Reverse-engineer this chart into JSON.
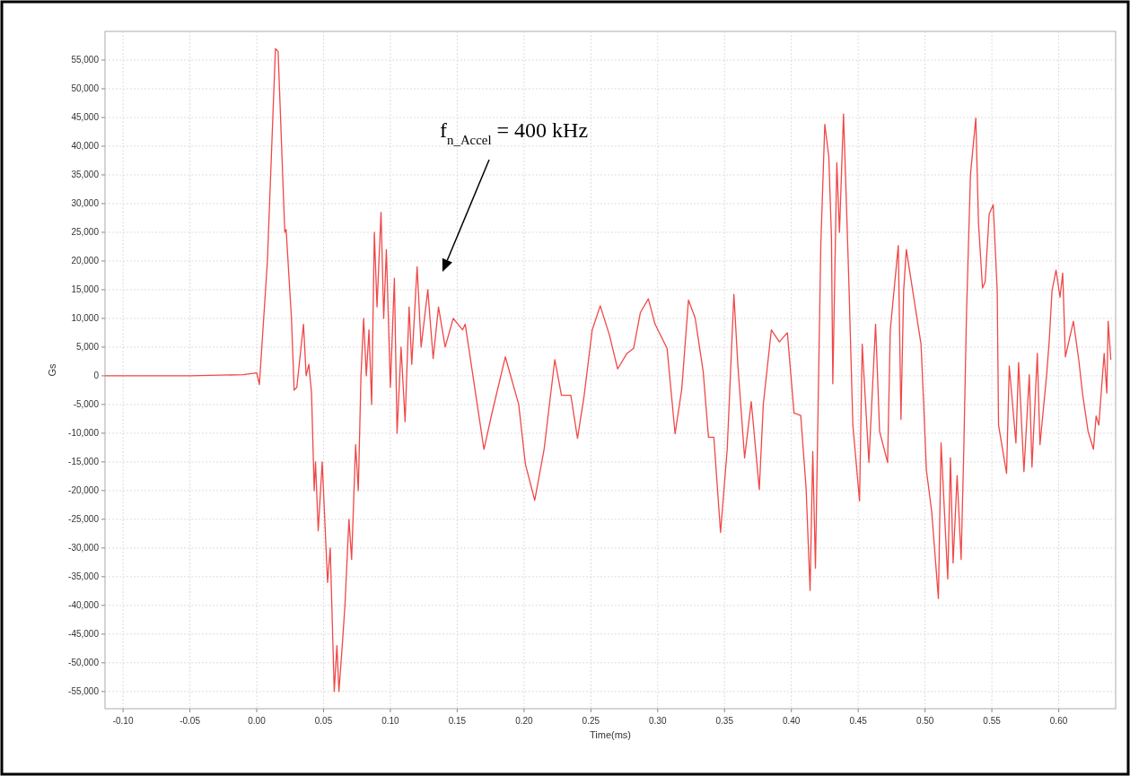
{
  "chart_data": {
    "type": "line",
    "xlabel": "Time(ms)",
    "ylabel": "Gs",
    "annotations": [
      "f$_{n_Accel}$ = 400 kHz"
    ],
    "xlim": [
      -0.1135,
      0.6426
    ],
    "ylim": [
      -58000,
      60000
    ],
    "xticks": [
      {
        "value": -0.1,
        "label": "-0.10"
      },
      {
        "value": -0.05,
        "label": "-0.05"
      },
      {
        "value": 0,
        "label": "0.00"
      },
      {
        "value": 0.05,
        "label": "0.05"
      },
      {
        "value": 0.1,
        "label": "0.10"
      },
      {
        "value": 0.15,
        "label": "0.15"
      },
      {
        "value": 0.2,
        "label": "0.20"
      },
      {
        "value": 0.25,
        "label": "0.25"
      },
      {
        "value": 0.3,
        "label": "0.30"
      },
      {
        "value": 0.35,
        "label": "0.35"
      },
      {
        "value": 0.4,
        "label": "0.40"
      },
      {
        "value": 0.45,
        "label": "0.45"
      },
      {
        "value": 0.5,
        "label": "0.50"
      },
      {
        "value": 0.55,
        "label": "0.55"
      },
      {
        "value": 0.6,
        "label": "0.60"
      }
    ],
    "yticks": [
      {
        "value": 55000,
        "label": "55,000"
      },
      {
        "value": 50000,
        "label": "50,000"
      },
      {
        "value": 45000,
        "label": "45,000"
      },
      {
        "value": 40000,
        "label": "40,000"
      },
      {
        "value": 35000,
        "label": "35,000"
      },
      {
        "value": 30000,
        "label": "30,000"
      },
      {
        "value": 25000,
        "label": "25,000"
      },
      {
        "value": 20000,
        "label": "20,000"
      },
      {
        "value": 15000,
        "label": "15,000"
      },
      {
        "value": 10000,
        "label": "10,000"
      },
      {
        "value": 5000,
        "label": "5,000"
      },
      0,
      {
        "value": -5000,
        "label": "-5,000"
      },
      {
        "value": -10000,
        "label": "-10,000"
      },
      {
        "value": -15000,
        "label": "-15,000"
      },
      {
        "value": -20000,
        "label": "-20,000"
      },
      {
        "value": -25000,
        "label": "-25,000"
      },
      {
        "value": -30000,
        "label": "-30,000"
      },
      {
        "value": -35000,
        "label": "-35,000"
      },
      {
        "value": -40000,
        "label": "-40,000"
      },
      {
        "value": -45000,
        "label": "-45,000"
      },
      {
        "value": -50000,
        "label": "-50,000"
      },
      {
        "value": -55000,
        "label": "-55,000"
      }
    ],
    "grid": true,
    "line_style": "solid",
    "marker": "none",
    "series": [
      {
        "color": "#f04848",
        "x": [
          -0.1135,
          -0.05,
          -0.01,
          0.0,
          0.002,
          0.008,
          0.014,
          0.016,
          0.021,
          0.022,
          0.026,
          0.028,
          0.03,
          0.035,
          0.037,
          0.039,
          0.041,
          0.043,
          0.044,
          0.046,
          0.049,
          0.053,
          0.055,
          0.058,
          0.06,
          0.0615,
          0.064,
          0.066,
          0.069,
          0.071,
          0.074,
          0.076,
          0.078,
          0.08,
          0.082,
          0.084,
          0.086,
          0.088,
          0.09,
          0.093,
          0.095,
          0.097,
          0.1,
          0.103,
          0.105,
          0.108,
          0.111,
          0.114,
          0.116,
          0.12,
          0.123,
          0.128,
          0.132,
          0.136,
          0.141,
          0.147,
          0.154,
          0.156,
          0.17,
          0.176,
          0.186,
          0.196,
          0.201,
          0.208,
          0.215,
          0.223,
          0.228,
          0.235,
          0.24,
          0.245,
          0.251,
          0.257,
          0.264,
          0.27,
          0.277,
          0.282,
          0.287,
          0.293,
          0.298,
          0.307,
          0.313,
          0.318,
          0.323,
          0.328,
          0.334,
          0.338,
          0.342,
          0.347,
          0.352,
          0.357,
          0.36,
          0.365,
          0.37,
          0.376,
          0.379,
          0.385,
          0.391,
          0.397,
          0.402,
          0.407,
          0.411,
          0.414,
          0.416,
          0.418,
          0.422,
          0.425,
          0.428,
          0.43,
          0.431,
          0.434,
          0.436,
          0.439,
          0.441,
          0.443,
          0.446,
          0.451,
          0.453,
          0.458,
          0.463,
          0.466,
          0.472,
          0.474,
          0.48,
          0.482,
          0.484,
          0.486,
          0.497,
          0.499,
          0.501,
          0.505,
          0.51,
          0.512,
          0.517,
          0.519,
          0.521,
          0.524,
          0.527,
          0.529,
          0.531,
          0.534,
          0.538,
          0.54,
          0.543,
          0.545,
          0.548,
          0.551,
          0.554,
          0.555,
          0.561,
          0.563,
          0.568,
          0.57,
          0.574,
          0.578,
          0.58,
          0.584,
          0.586,
          0.591,
          0.593,
          0.595,
          0.598,
          0.601,
          0.603,
          0.605,
          0.611,
          0.615,
          0.618,
          0.622,
          0.626,
          0.628,
          0.63,
          0.634,
          0.636,
          0.637,
          0.639
        ],
        "values": [
          0,
          0,
          200,
          500,
          -1500,
          20000,
          57000,
          56500,
          25000,
          25500,
          10000,
          -2500,
          -2000,
          9000,
          0,
          2000,
          -3000,
          -20000,
          -15000,
          -27000,
          -15000,
          -36000,
          -30000,
          -55000,
          -47000,
          -55000,
          -47000,
          -40000,
          -25000,
          -32000,
          -12000,
          -20000,
          0,
          10000,
          0,
          8000,
          -5000,
          25000,
          12000,
          28500,
          10000,
          22000,
          -2000,
          17000,
          -10000,
          5000,
          -8000,
          12000,
          2000,
          19000,
          5000,
          15000,
          3000,
          12000,
          5000,
          10000,
          8000,
          9000,
          -12800,
          -6500,
          3300,
          -5000,
          -15400,
          -21700,
          -12800,
          2800,
          -3400,
          -3400,
          -10900,
          -3400,
          8000,
          12200,
          7000,
          1200,
          3900,
          4800,
          11000,
          13400,
          9000,
          4800,
          -10100,
          -2300,
          13200,
          10100,
          800,
          -10700,
          -10700,
          -27300,
          -12800,
          14200,
          1700,
          -14300,
          -4500,
          -19800,
          -5000,
          8000,
          5900,
          7500,
          -6500,
          -6900,
          -19500,
          -37400,
          -13200,
          -33500,
          22600,
          43800,
          38200,
          24100,
          -1400,
          37100,
          25000,
          45600,
          31300,
          16400,
          -8600,
          -21800,
          5500,
          -15100,
          9000,
          -9700,
          -15100,
          8000,
          22700,
          -7600,
          14800,
          22000,
          5500,
          -5000,
          -16400,
          -23700,
          -38800,
          -11700,
          -35400,
          -14300,
          -32600,
          -17400,
          -32000,
          -12800,
          10600,
          35100,
          44900,
          26600,
          15300,
          16400,
          28200,
          29800,
          14800,
          -8600,
          -17000,
          1700,
          -11700,
          2300,
          -16700,
          200,
          -15900,
          3900,
          -12000,
          200,
          6400,
          14800,
          18400,
          13700,
          17900,
          3300,
          9500,
          2800,
          -3400,
          -9700,
          -12800,
          -7000,
          -8600,
          3900,
          -3000,
          9500,
          2800
        ]
      }
    ]
  }
}
